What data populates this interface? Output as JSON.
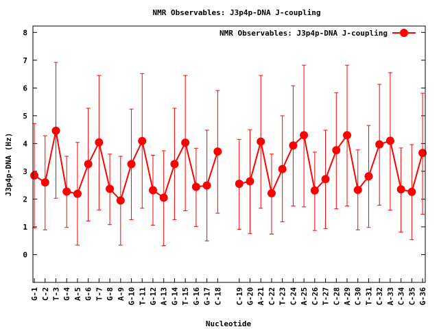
{
  "chart_data": {
    "type": "line",
    "title": "NMR Observables: J3p4p-DNA J-coupling",
    "xlabel": "Nucleotide",
    "ylabel": "J3p4p-DNA (Hz)",
    "ylim": [
      -1,
      8.23
    ],
    "xlim": [
      0.87,
      37.25
    ],
    "yticks": [
      0,
      1,
      2,
      3,
      4,
      5,
      6,
      7,
      8
    ],
    "grid": false,
    "legend": {
      "label": "NMR Observables: J3p4p-DNA J-coupling",
      "placement": "top-right"
    },
    "color": "#ff0000",
    "categories": [
      "G-1",
      "C-2",
      "T-3",
      "G-4",
      "A-5",
      "G-6",
      "T-7",
      "G-8",
      "A-9",
      "G-10",
      "T-11",
      "G-12",
      "A-13",
      "G-14",
      "T-15",
      "G-16",
      "G-17",
      "C-18",
      "C-19",
      "G-20",
      "A-21",
      "C-22",
      "T-23",
      "C-24",
      "A-25",
      "C-26",
      "T-27",
      "C-28",
      "A-29",
      "C-30",
      "T-31",
      "C-32",
      "A-33",
      "C-34",
      "C-35",
      "G-36"
    ],
    "x": [
      1,
      2,
      3,
      4,
      5,
      6,
      7,
      8,
      9,
      10,
      11,
      12,
      13,
      14,
      15,
      16,
      17,
      18,
      20,
      21,
      22,
      23,
      24,
      25,
      26,
      27,
      28,
      29,
      30,
      31,
      32,
      33,
      34,
      35,
      36,
      37
    ],
    "values": [
      2.85,
      2.6,
      4.46,
      2.27,
      2.19,
      3.26,
      4.04,
      2.37,
      1.95,
      3.26,
      4.09,
      2.32,
      2.05,
      3.26,
      4.03,
      2.44,
      2.49,
      3.71,
      2.55,
      2.64,
      4.07,
      2.21,
      3.08,
      3.93,
      4.3,
      2.31,
      2.72,
      3.76,
      4.3,
      2.33,
      2.82,
      3.97,
      4.1,
      2.35,
      2.26,
      3.66
    ],
    "err_high": [
      4.72,
      4.28,
      6.92,
      3.54,
      4.04,
      5.27,
      6.45,
      3.62,
      3.54,
      5.24,
      6.52,
      3.58,
      3.74,
      5.27,
      6.45,
      3.83,
      4.48,
      5.91,
      4.15,
      4.5,
      6.45,
      3.62,
      5.0,
      6.08,
      6.82,
      3.69,
      4.48,
      5.83,
      6.82,
      3.77,
      4.65,
      6.13,
      6.55,
      3.84,
      3.96,
      5.81
    ],
    "err_low": [
      0.96,
      0.89,
      2.03,
      0.98,
      0.34,
      1.21,
      1.61,
      1.08,
      0.34,
      1.26,
      1.67,
      1.06,
      0.32,
      1.26,
      1.58,
      1.01,
      0.49,
      1.49,
      0.91,
      0.76,
      1.67,
      0.74,
      1.18,
      1.75,
      1.72,
      0.87,
      0.94,
      1.65,
      1.75,
      0.89,
      0.98,
      1.78,
      1.6,
      0.81,
      0.54,
      1.45
    ],
    "segments": [
      [
        0,
        18
      ],
      [
        18,
        36
      ]
    ]
  }
}
